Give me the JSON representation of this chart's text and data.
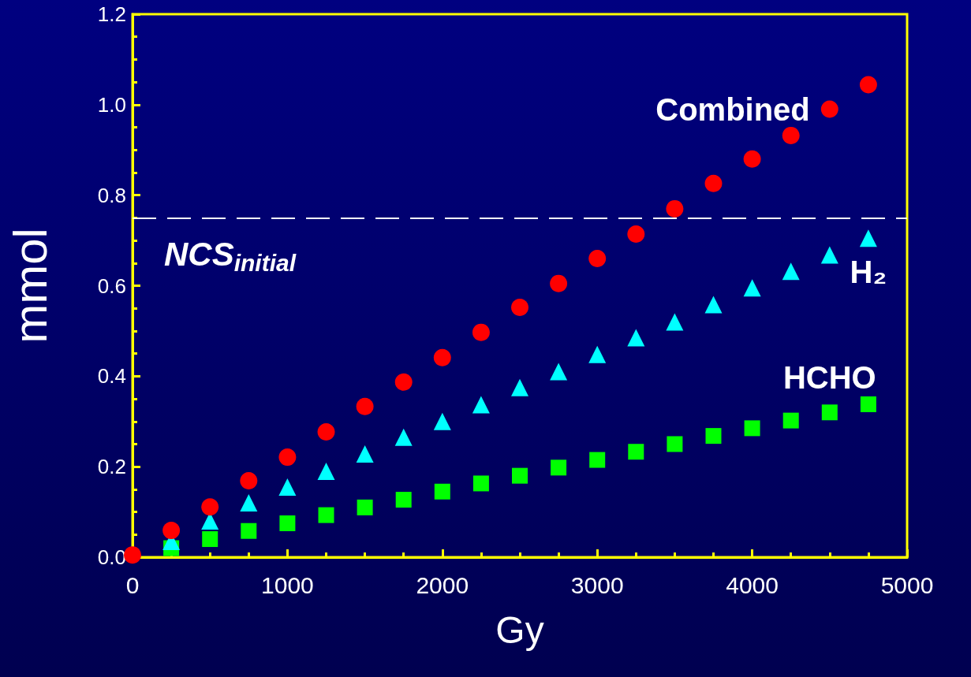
{
  "chart_data": {
    "type": "scatter",
    "xlabel": "Gy",
    "ylabel": "mmol",
    "x": [
      0,
      250,
      500,
      750,
      1000,
      1250,
      1500,
      1750,
      2000,
      2250,
      2500,
      2750,
      3000,
      3250,
      3500,
      3750,
      4000,
      4250,
      4500,
      4750
    ],
    "series": [
      {
        "name": "Combined",
        "color": "#ff0000",
        "marker": "circle",
        "values": [
          0.005,
          0.059,
          0.111,
          0.169,
          0.221,
          0.277,
          0.333,
          0.387,
          0.441,
          0.497,
          0.552,
          0.605,
          0.66,
          0.714,
          0.77,
          0.826,
          0.88,
          0.932,
          0.99,
          1.044
        ]
      },
      {
        "name": "H₂",
        "color": "#00ffff",
        "marker": "triangle",
        "values": [
          null,
          0.035,
          0.08,
          0.12,
          0.155,
          0.19,
          0.228,
          0.265,
          0.3,
          0.337,
          0.375,
          0.41,
          0.448,
          0.485,
          0.52,
          0.558,
          0.595,
          0.632,
          0.668,
          0.705
        ]
      },
      {
        "name": "HCHO",
        "color": "#00ff00",
        "marker": "square",
        "values": [
          null,
          0.02,
          0.04,
          0.058,
          0.075,
          0.093,
          0.11,
          0.127,
          0.145,
          0.163,
          0.18,
          0.198,
          0.215,
          0.233,
          0.25,
          0.268,
          0.285,
          0.302,
          0.32,
          0.338
        ]
      }
    ],
    "xlim": [
      0,
      5000
    ],
    "xticks": [
      0,
      1000,
      2000,
      3000,
      4000,
      5000
    ],
    "ylim": [
      0,
      1.2
    ],
    "yticks": [
      {
        "value": 0,
        "label": "0.0"
      },
      {
        "value": 0.2,
        "label": "0.2"
      },
      {
        "value": 0.4,
        "label": "0.4"
      },
      {
        "value": 0.6,
        "label": "0.6"
      },
      {
        "value": 0.8,
        "label": "0.8"
      },
      {
        "value": 1.0,
        "label": "1.0"
      },
      {
        "value": 1.2,
        "label": "1.2"
      }
    ],
    "ref_lines": [
      {
        "axis": "y",
        "value": 0.75,
        "label": "NCS$_{initial}$",
        "color": "#ffffff",
        "line_style": "dashed"
      }
    ],
    "grid": false,
    "legend": false
  }
}
